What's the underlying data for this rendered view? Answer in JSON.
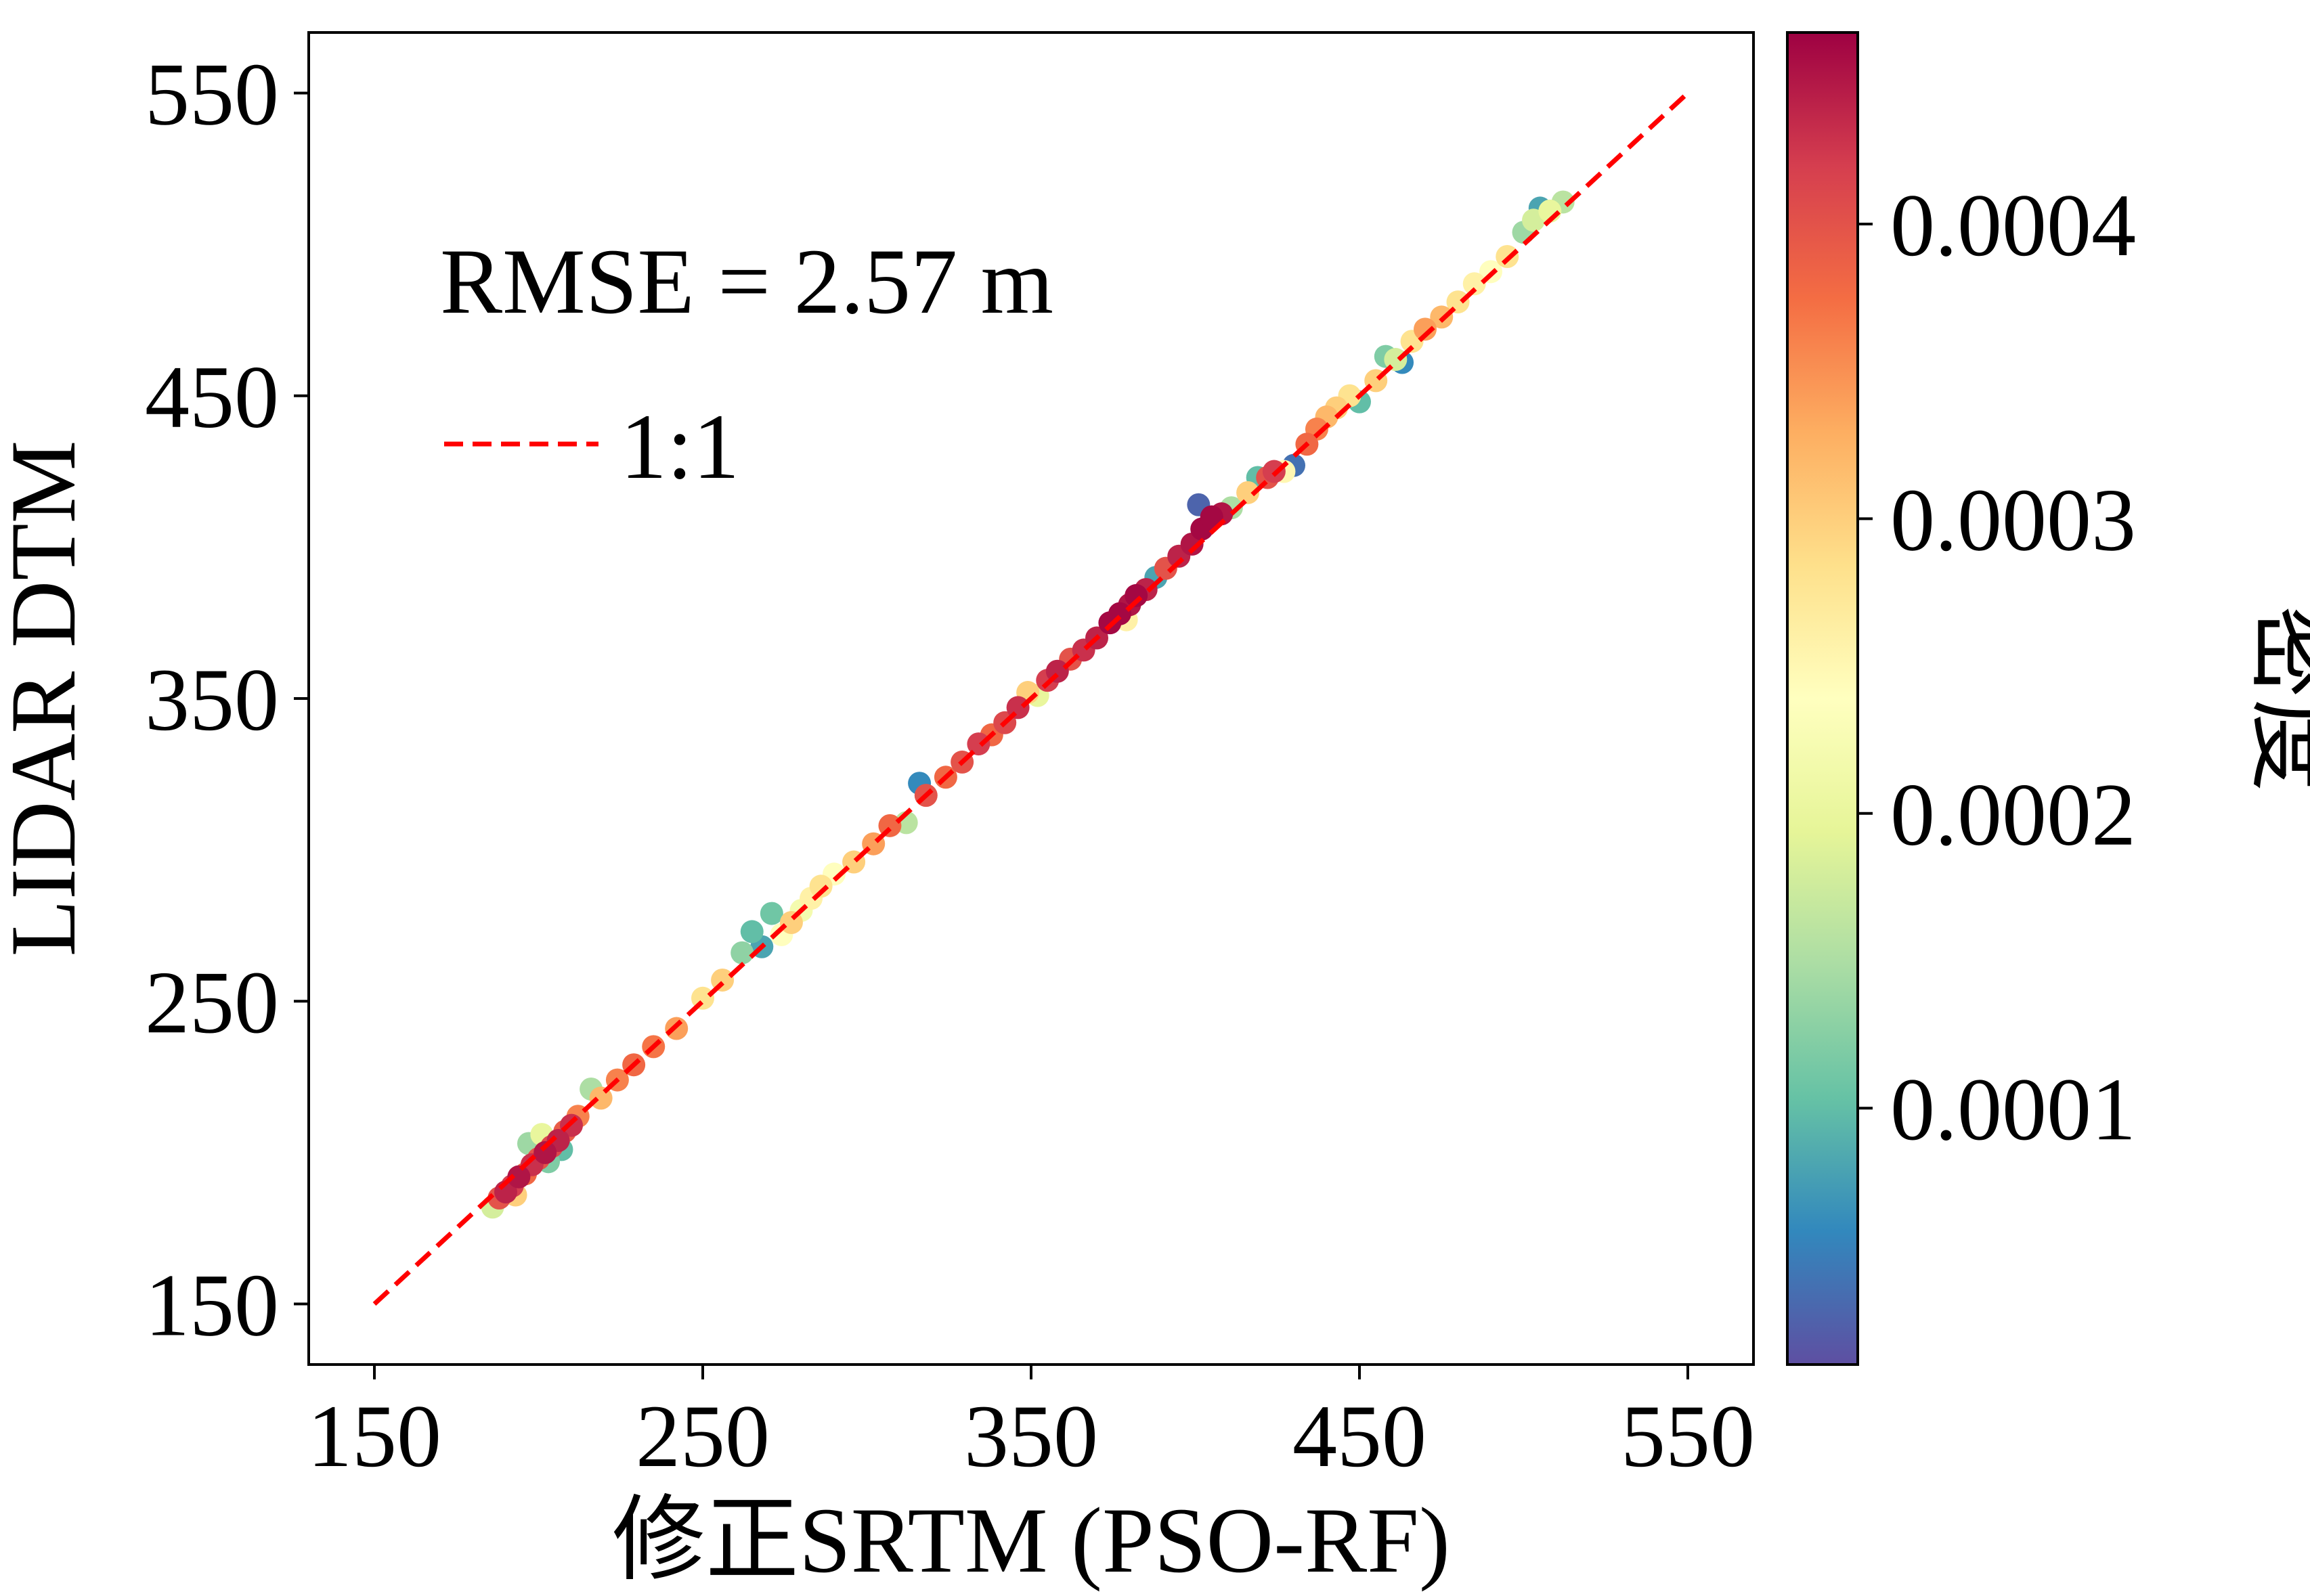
{
  "chart_data": {
    "type": "scatter",
    "title": "",
    "xlabel": "修正SRTM (PSO-RF)",
    "ylabel": "LIDAR DTM",
    "xlim": [
      130,
      570
    ],
    "ylim": [
      130,
      570
    ],
    "xticks": [
      150,
      250,
      350,
      450,
      550
    ],
    "yticks": [
      150,
      250,
      350,
      450,
      550
    ],
    "xtick_labels": [
      "150",
      "250",
      "350",
      "450",
      "550"
    ],
    "ytick_labels": [
      "150",
      "250",
      "350",
      "450",
      "550"
    ],
    "grid": false,
    "annotation": "RMSE = 2.57 m",
    "legend": {
      "position": "upper-left",
      "entries": [
        {
          "label": "1:1",
          "style": "dashed",
          "color": "#ff0000"
        }
      ]
    },
    "reference_line": {
      "name": "1:1",
      "x": [
        150,
        550
      ],
      "y": [
        150,
        550
      ]
    },
    "colorbar": {
      "label": "密度",
      "min": 1.3e-05,
      "max": 0.000465,
      "ticks": [
        0.0001,
        0.0002,
        0.0003,
        0.0004
      ],
      "tick_labels": [
        "0.0001",
        "0.0002",
        "0.0003",
        "0.0004"
      ],
      "colormap": "Spectral_r",
      "colors": [
        "#5e4fa2",
        "#3288bd",
        "#66c2a5",
        "#abdda4",
        "#e6f598",
        "#ffffbf",
        "#fee08b",
        "#fdae61",
        "#f46d43",
        "#d53e4f",
        "#9e0142"
      ]
    },
    "points": [
      {
        "x": 186,
        "y": 182,
        "d": 0.00018
      },
      {
        "x": 188,
        "y": 185,
        "d": 0.0004
      },
      {
        "x": 190,
        "y": 187,
        "d": 0.00044
      },
      {
        "x": 192,
        "y": 189,
        "d": 0.00042
      },
      {
        "x": 194,
        "y": 192,
        "d": 0.00045
      },
      {
        "x": 196,
        "y": 193,
        "d": 0.00038
      },
      {
        "x": 198,
        "y": 196,
        "d": 0.00043
      },
      {
        "x": 200,
        "y": 198,
        "d": 0.0004
      },
      {
        "x": 202,
        "y": 200,
        "d": 0.00045
      },
      {
        "x": 204,
        "y": 202,
        "d": 0.00041
      },
      {
        "x": 206,
        "y": 204,
        "d": 0.00044
      },
      {
        "x": 208,
        "y": 207,
        "d": 0.00039
      },
      {
        "x": 210,
        "y": 209,
        "d": 0.00043
      },
      {
        "x": 212,
        "y": 212,
        "d": 0.00036
      },
      {
        "x": 197,
        "y": 203,
        "d": 0.00014
      },
      {
        "x": 203,
        "y": 197,
        "d": 0.00012
      },
      {
        "x": 207,
        "y": 201,
        "d": 0.0001
      },
      {
        "x": 201,
        "y": 206,
        "d": 0.0002
      },
      {
        "x": 193,
        "y": 186,
        "d": 0.0003
      },
      {
        "x": 216,
        "y": 221,
        "d": 0.00015
      },
      {
        "x": 219,
        "y": 218,
        "d": 0.00032
      },
      {
        "x": 224,
        "y": 224,
        "d": 0.00036
      },
      {
        "x": 229,
        "y": 229,
        "d": 0.00038
      },
      {
        "x": 235,
        "y": 235,
        "d": 0.00037
      },
      {
        "x": 242,
        "y": 241,
        "d": 0.00034
      },
      {
        "x": 250,
        "y": 251,
        "d": 0.00028
      },
      {
        "x": 256,
        "y": 257,
        "d": 0.0003
      },
      {
        "x": 262,
        "y": 266,
        "d": 0.00013
      },
      {
        "x": 265,
        "y": 273,
        "d": 0.0001
      },
      {
        "x": 268,
        "y": 268,
        "d": 8e-05
      },
      {
        "x": 271,
        "y": 279,
        "d": 0.00011
      },
      {
        "x": 274,
        "y": 272,
        "d": 0.00024
      },
      {
        "x": 277,
        "y": 276,
        "d": 0.0003
      },
      {
        "x": 280,
        "y": 280,
        "d": 0.00022
      },
      {
        "x": 283,
        "y": 284,
        "d": 0.00026
      },
      {
        "x": 286,
        "y": 288,
        "d": 0.00028
      },
      {
        "x": 290,
        "y": 292,
        "d": 0.00024
      },
      {
        "x": 296,
        "y": 296,
        "d": 0.0003
      },
      {
        "x": 302,
        "y": 302,
        "d": 0.00034
      },
      {
        "x": 307,
        "y": 308,
        "d": 0.00038
      },
      {
        "x": 312,
        "y": 309,
        "d": 0.00016
      },
      {
        "x": 316,
        "y": 322,
        "d": 6e-05
      },
      {
        "x": 318,
        "y": 318,
        "d": 0.0004
      },
      {
        "x": 324,
        "y": 324,
        "d": 0.00038
      },
      {
        "x": 329,
        "y": 329,
        "d": 0.0004
      },
      {
        "x": 334,
        "y": 335,
        "d": 0.00042
      },
      {
        "x": 338,
        "y": 338,
        "d": 0.00038
      },
      {
        "x": 342,
        "y": 342,
        "d": 0.00041
      },
      {
        "x": 346,
        "y": 347,
        "d": 0.00043
      },
      {
        "x": 349,
        "y": 352,
        "d": 0.0003
      },
      {
        "x": 352,
        "y": 351,
        "d": 0.0002
      },
      {
        "x": 355,
        "y": 356,
        "d": 0.00042
      },
      {
        "x": 358,
        "y": 359,
        "d": 0.00044
      },
      {
        "x": 362,
        "y": 363,
        "d": 0.0004
      },
      {
        "x": 366,
        "y": 366,
        "d": 0.00043
      },
      {
        "x": 370,
        "y": 370,
        "d": 0.00044
      },
      {
        "x": 374,
        "y": 375,
        "d": 0.00046
      },
      {
        "x": 377,
        "y": 378,
        "d": 0.00046
      },
      {
        "x": 380,
        "y": 381,
        "d": 0.00045
      },
      {
        "x": 382,
        "y": 384,
        "d": 0.00046
      },
      {
        "x": 385,
        "y": 386,
        "d": 0.00044
      },
      {
        "x": 379,
        "y": 376,
        "d": 0.00026
      },
      {
        "x": 388,
        "y": 390,
        "d": 8e-05
      },
      {
        "x": 391,
        "y": 393,
        "d": 0.0004
      },
      {
        "x": 395,
        "y": 397,
        "d": 0.00044
      },
      {
        "x": 399,
        "y": 401,
        "d": 0.00045
      },
      {
        "x": 402,
        "y": 406,
        "d": 0.00046
      },
      {
        "x": 405,
        "y": 410,
        "d": 0.00046
      },
      {
        "x": 408,
        "y": 411,
        "d": 0.00045
      },
      {
        "x": 401,
        "y": 414,
        "d": 3e-05
      },
      {
        "x": 411,
        "y": 413,
        "d": 0.00015
      },
      {
        "x": 416,
        "y": 418,
        "d": 0.0003
      },
      {
        "x": 419,
        "y": 423,
        "d": 0.0001
      },
      {
        "x": 422,
        "y": 423,
        "d": 0.0004
      },
      {
        "x": 424,
        "y": 425,
        "d": 0.00042
      },
      {
        "x": 427,
        "y": 425,
        "d": 0.00025
      },
      {
        "x": 430,
        "y": 427,
        "d": 4e-05
      },
      {
        "x": 434,
        "y": 434,
        "d": 0.00038
      },
      {
        "x": 437,
        "y": 439,
        "d": 0.00036
      },
      {
        "x": 440,
        "y": 443,
        "d": 0.00032
      },
      {
        "x": 443,
        "y": 446,
        "d": 0.0003
      },
      {
        "x": 447,
        "y": 450,
        "d": 0.00028
      },
      {
        "x": 450,
        "y": 448,
        "d": 0.0001
      },
      {
        "x": 455,
        "y": 455,
        "d": 0.0003
      },
      {
        "x": 458,
        "y": 463,
        "d": 0.00012
      },
      {
        "x": 461,
        "y": 462,
        "d": 0.00018
      },
      {
        "x": 463,
        "y": 461,
        "d": 6e-05
      },
      {
        "x": 466,
        "y": 468,
        "d": 0.00028
      },
      {
        "x": 470,
        "y": 472,
        "d": 0.00034
      },
      {
        "x": 475,
        "y": 476,
        "d": 0.00032
      },
      {
        "x": 480,
        "y": 481,
        "d": 0.00028
      },
      {
        "x": 485,
        "y": 487,
        "d": 0.00026
      },
      {
        "x": 490,
        "y": 491,
        "d": 0.00024
      },
      {
        "x": 495,
        "y": 496,
        "d": 0.00028
      },
      {
        "x": 500,
        "y": 504,
        "d": 0.00014
      },
      {
        "x": 503,
        "y": 508,
        "d": 0.00018
      },
      {
        "x": 505,
        "y": 512,
        "d": 8e-05
      },
      {
        "x": 508,
        "y": 511,
        "d": 0.0002
      },
      {
        "x": 512,
        "y": 514,
        "d": 0.00016
      }
    ]
  }
}
